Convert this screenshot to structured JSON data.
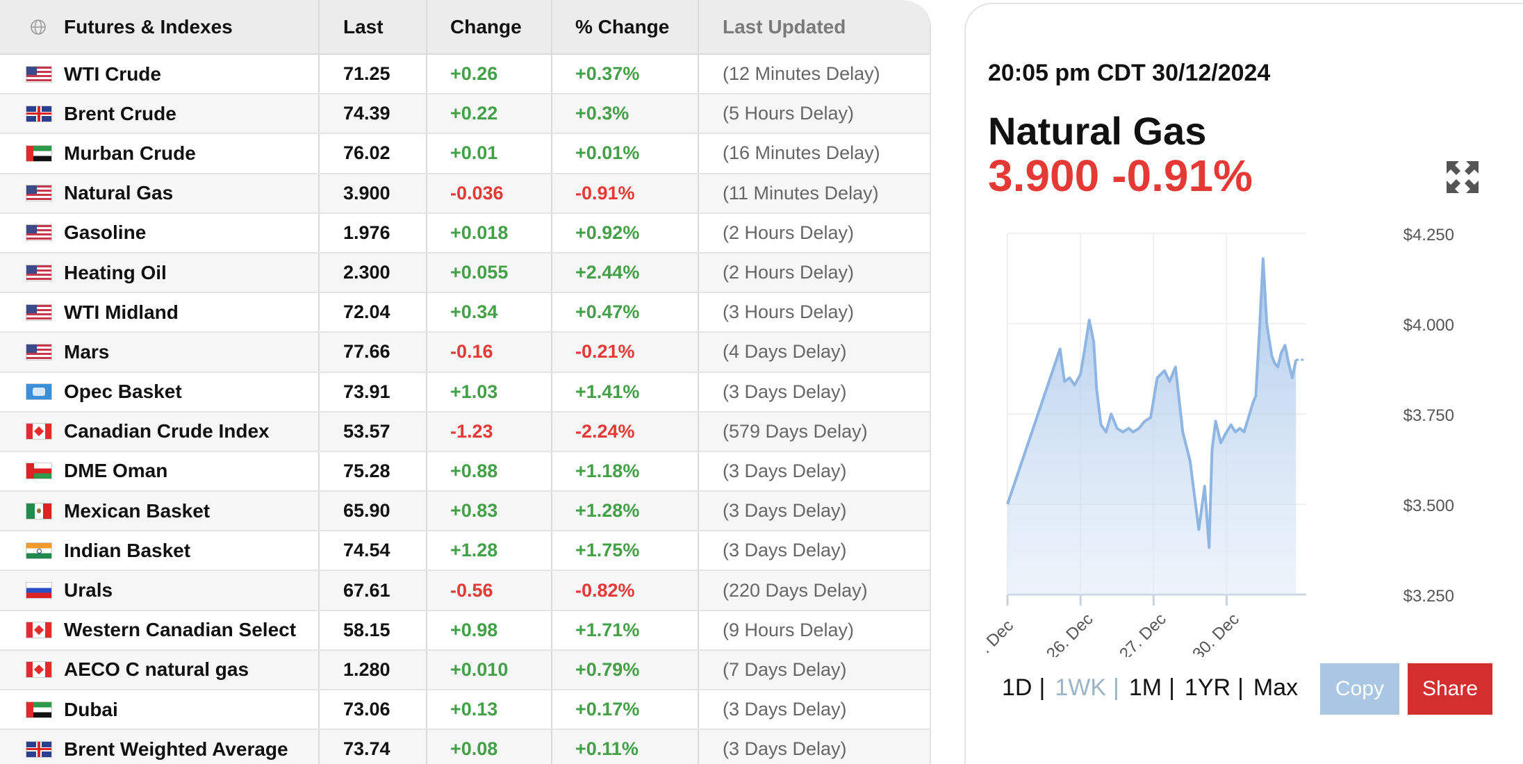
{
  "table": {
    "headers": {
      "name": "Futures & Indexes",
      "last": "Last",
      "change": "Change",
      "pct": "% Change",
      "updated": "Last Updated"
    },
    "rows": [
      {
        "flag": "us",
        "name": "WTI Crude",
        "last": "71.25",
        "change": "+0.26",
        "pct": "+0.37%",
        "updated": "(12 Minutes Delay)",
        "dir": "pos"
      },
      {
        "flag": "uk",
        "name": "Brent Crude",
        "last": "74.39",
        "change": "+0.22",
        "pct": "+0.3%",
        "updated": "(5 Hours Delay)",
        "dir": "pos"
      },
      {
        "flag": "ae",
        "name": "Murban Crude",
        "last": "76.02",
        "change": "+0.01",
        "pct": "+0.01%",
        "updated": "(16 Minutes Delay)",
        "dir": "pos"
      },
      {
        "flag": "us",
        "name": "Natural Gas",
        "last": "3.900",
        "change": "-0.036",
        "pct": "-0.91%",
        "updated": "(11 Minutes Delay)",
        "dir": "neg"
      },
      {
        "flag": "us",
        "name": "Gasoline",
        "last": "1.976",
        "change": "+0.018",
        "pct": "+0.92%",
        "updated": "(2 Hours Delay)",
        "dir": "pos"
      },
      {
        "flag": "us",
        "name": "Heating Oil",
        "last": "2.300",
        "change": "+0.055",
        "pct": "+2.44%",
        "updated": "(2 Hours Delay)",
        "dir": "pos"
      },
      {
        "flag": "us",
        "name": "WTI Midland",
        "last": "72.04",
        "change": "+0.34",
        "pct": "+0.47%",
        "updated": "(3 Hours Delay)",
        "dir": "pos"
      },
      {
        "flag": "us",
        "name": "Mars",
        "last": "77.66",
        "change": "-0.16",
        "pct": "-0.21%",
        "updated": "(4 Days Delay)",
        "dir": "neg"
      },
      {
        "flag": "opec",
        "name": "Opec Basket",
        "last": "73.91",
        "change": "+1.03",
        "pct": "+1.41%",
        "updated": "(3 Days Delay)",
        "dir": "pos"
      },
      {
        "flag": "ca",
        "name": "Canadian Crude Index",
        "last": "53.57",
        "change": "-1.23",
        "pct": "-2.24%",
        "updated": "(579 Days Delay)",
        "dir": "neg"
      },
      {
        "flag": "om",
        "name": "DME Oman",
        "last": "75.28",
        "change": "+0.88",
        "pct": "+1.18%",
        "updated": "(3 Days Delay)",
        "dir": "pos"
      },
      {
        "flag": "mx",
        "name": "Mexican Basket",
        "last": "65.90",
        "change": "+0.83",
        "pct": "+1.28%",
        "updated": "(3 Days Delay)",
        "dir": "pos"
      },
      {
        "flag": "in",
        "name": "Indian Basket",
        "last": "74.54",
        "change": "+1.28",
        "pct": "+1.75%",
        "updated": "(3 Days Delay)",
        "dir": "pos"
      },
      {
        "flag": "ru",
        "name": "Urals",
        "last": "67.61",
        "change": "-0.56",
        "pct": "-0.82%",
        "updated": "(220 Days Delay)",
        "dir": "neg"
      },
      {
        "flag": "ca",
        "name": "Western Canadian Select",
        "last": "58.15",
        "change": "+0.98",
        "pct": "+1.71%",
        "updated": "(9 Hours Delay)",
        "dir": "pos"
      },
      {
        "flag": "ca",
        "name": "AECO C natural gas",
        "last": "1.280",
        "change": "+0.010",
        "pct": "+0.79%",
        "updated": "(7 Days Delay)",
        "dir": "pos"
      },
      {
        "flag": "ae",
        "name": "Dubai",
        "last": "73.06",
        "change": "+0.13",
        "pct": "+0.17%",
        "updated": "(3 Days Delay)",
        "dir": "pos"
      },
      {
        "flag": "uk",
        "name": "Brent Weighted Average",
        "last": "73.74",
        "change": "+0.08",
        "pct": "+0.11%",
        "updated": "(3 Days Delay)",
        "dir": "pos"
      }
    ]
  },
  "detail": {
    "timestamp": "20:05 pm CDT 30/12/2024",
    "instrument": "Natural Gas",
    "price": "3.900",
    "change_pct": "-0.91%",
    "ranges": [
      "1D",
      "1WK",
      "1M",
      "1YR",
      "Max"
    ],
    "active_range": "1WK",
    "copy_label": "Copy",
    "share_label": "Share",
    "colors": {
      "negative": "#e53935",
      "positive": "#43a047",
      "line": "#8fb6e3",
      "share": "#d32f2f",
      "copy": "#a9c7e2"
    }
  },
  "chart_data": {
    "type": "area",
    "series": [
      {
        "x": [
          0.0,
          0.72,
          0.78,
          0.85,
          0.92,
          1.0,
          1.05,
          1.12,
          1.18,
          1.22,
          1.28,
          1.35,
          1.42,
          1.5,
          1.58,
          1.66,
          1.72,
          1.8,
          1.88,
          1.96,
          2.05,
          2.15,
          2.22,
          2.3,
          2.4,
          2.5,
          2.62,
          2.7,
          2.76,
          2.8,
          2.85,
          2.92,
          3.0,
          3.06,
          3.12,
          3.18,
          3.24,
          3.3,
          3.36,
          3.4,
          3.45,
          3.5,
          3.55,
          3.58,
          3.62,
          3.66,
          3.7,
          3.75,
          3.8,
          3.85,
          3.9,
          3.95
        ],
        "y": [
          3.5,
          3.93,
          3.84,
          3.85,
          3.83,
          3.86,
          3.92,
          4.01,
          3.95,
          3.82,
          3.72,
          3.7,
          3.75,
          3.71,
          3.7,
          3.71,
          3.7,
          3.71,
          3.73,
          3.74,
          3.85,
          3.87,
          3.84,
          3.88,
          3.7,
          3.62,
          3.43,
          3.55,
          3.38,
          3.65,
          3.73,
          3.67,
          3.7,
          3.72,
          3.7,
          3.71,
          3.7,
          3.74,
          3.78,
          3.8,
          3.98,
          4.18,
          4.0,
          3.96,
          3.91,
          3.89,
          3.88,
          3.92,
          3.94,
          3.89,
          3.85,
          3.9
        ]
      }
    ],
    "x_tick_labels": [
      ". Dec",
      "26. Dec",
      "27. Dec",
      "30. Dec"
    ],
    "x_tick_positions": [
      0,
      1,
      2,
      3
    ],
    "y_ticks": [
      3.25,
      3.5,
      3.75,
      4.0,
      4.25
    ],
    "y_tick_labels": [
      "$3.250",
      "$3.500",
      "$3.750",
      "$4.000",
      "$4.250"
    ],
    "ylim": [
      3.25,
      4.25
    ],
    "xlim": [
      0,
      3.9
    ],
    "grid": true,
    "last_value": 3.9
  }
}
